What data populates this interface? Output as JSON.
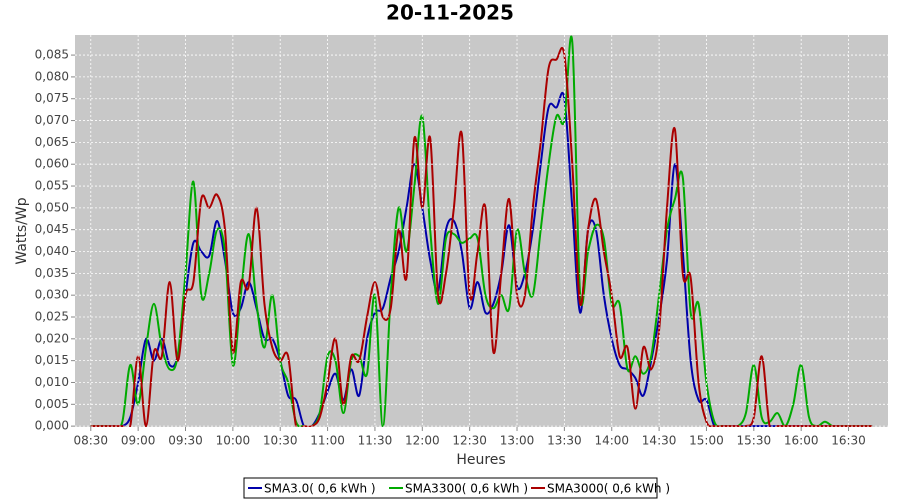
{
  "chart_data": {
    "type": "line",
    "title": "20-11-2025",
    "xlabel": "Heures",
    "ylabel": "Watts/Wp",
    "grid": true,
    "legend": "bottom",
    "xlim": [
      "08:20",
      "16:55"
    ],
    "xticks": [
      "08:30",
      "09:00",
      "09:30",
      "10:00",
      "10:30",
      "11:00",
      "11:30",
      "12:00",
      "12:30",
      "13:00",
      "13:30",
      "14:00",
      "14:30",
      "15:00",
      "15:30",
      "16:00",
      "16:30"
    ],
    "ylim": [
      -0.0002,
      0.0896
    ],
    "yticks": [
      {
        "value": 0,
        "label": "0,000"
      },
      {
        "value": 0.005,
        "label": "0,005"
      },
      {
        "value": 0.01,
        "label": "0,010"
      },
      {
        "value": 0.015,
        "label": "0,015"
      },
      {
        "value": 0.02,
        "label": "0,020"
      },
      {
        "value": 0.025,
        "label": "0,025"
      },
      {
        "value": 0.03,
        "label": "0,030"
      },
      {
        "value": 0.035,
        "label": "0,035"
      },
      {
        "value": 0.04,
        "label": "0,040"
      },
      {
        "value": 0.045,
        "label": "0,045"
      },
      {
        "value": 0.05,
        "label": "0,050"
      },
      {
        "value": 0.055,
        "label": "0,055"
      },
      {
        "value": 0.06,
        "label": "0,060"
      },
      {
        "value": 0.065,
        "label": "0,065"
      },
      {
        "value": 0.07,
        "label": "0,070"
      },
      {
        "value": 0.075,
        "label": "0,075"
      },
      {
        "value": 0.08,
        "label": "0,080"
      },
      {
        "value": 0.085,
        "label": "0,085"
      }
    ],
    "x": [
      "08:30",
      "08:35",
      "08:40",
      "08:45",
      "08:50",
      "08:55",
      "09:00",
      "09:05",
      "09:10",
      "09:15",
      "09:20",
      "09:25",
      "09:30",
      "09:35",
      "09:40",
      "09:45",
      "09:50",
      "09:55",
      "10:00",
      "10:05",
      "10:10",
      "10:15",
      "10:20",
      "10:25",
      "10:30",
      "10:35",
      "10:40",
      "10:45",
      "10:50",
      "10:55",
      "11:00",
      "11:05",
      "11:10",
      "11:15",
      "11:20",
      "11:25",
      "11:30",
      "11:35",
      "11:40",
      "11:45",
      "11:50",
      "11:55",
      "12:00",
      "12:05",
      "12:10",
      "12:15",
      "12:20",
      "12:25",
      "12:30",
      "12:35",
      "12:40",
      "12:45",
      "12:50",
      "12:55",
      "13:00",
      "13:05",
      "13:10",
      "13:15",
      "13:20",
      "13:25",
      "13:30",
      "13:35",
      "13:40",
      "13:45",
      "13:50",
      "13:55",
      "14:00",
      "14:05",
      "14:10",
      "14:15",
      "14:20",
      "14:25",
      "14:30",
      "14:35",
      "14:40",
      "14:45",
      "14:50",
      "14:55",
      "15:00",
      "15:05",
      "15:10",
      "15:15",
      "15:20",
      "15:25",
      "15:30",
      "15:35",
      "15:40",
      "15:45",
      "15:50",
      "15:55",
      "16:00",
      "16:05",
      "16:10",
      "16:15",
      "16:20",
      "16:25",
      "16:30",
      "16:35",
      "16:40",
      "16:45"
    ],
    "series": [
      {
        "name": "SMA3.0( 0,6 kWh )",
        "color": "#0000aa",
        "values": [
          0,
          0,
          0,
          0,
          0,
          0.002,
          0.01,
          0.02,
          0.015,
          0.02,
          0.014,
          0.016,
          0.03,
          0.042,
          0.04,
          0.039,
          0.047,
          0.038,
          0.026,
          0.027,
          0.033,
          0.027,
          0.02,
          0.02,
          0.015,
          0.007,
          0.006,
          0,
          0,
          0.003,
          0.008,
          0.012,
          0.006,
          0.013,
          0.007,
          0.02,
          0.026,
          0.027,
          0.034,
          0.04,
          0.05,
          0.06,
          0.05,
          0.038,
          0.031,
          0.045,
          0.047,
          0.04,
          0.027,
          0.033,
          0.026,
          0.028,
          0.035,
          0.046,
          0.032,
          0.035,
          0.045,
          0.06,
          0.073,
          0.073,
          0.075,
          0.05,
          0.026,
          0.045,
          0.045,
          0.03,
          0.02,
          0.014,
          0.013,
          0.011,
          0.007,
          0.015,
          0.025,
          0.038,
          0.06,
          0.04,
          0.015,
          0.006,
          0.006,
          0,
          0,
          0,
          0,
          0,
          0,
          0,
          0,
          0,
          0,
          0,
          0,
          0,
          0,
          0,
          0,
          0,
          0,
          0,
          0,
          0
        ]
      },
      {
        "name": "SMA3300( 0,6 kWh )",
        "color": "#00aa00",
        "values": [
          0,
          0,
          0,
          0,
          0.001,
          0.014,
          0.005,
          0.018,
          0.028,
          0.018,
          0.013,
          0.016,
          0.035,
          0.056,
          0.03,
          0.035,
          0.045,
          0.04,
          0.014,
          0.03,
          0.044,
          0.028,
          0.018,
          0.03,
          0.015,
          0.01,
          0.001,
          0,
          0,
          0.003,
          0.016,
          0.015,
          0.003,
          0.015,
          0.016,
          0.012,
          0.03,
          0,
          0.03,
          0.05,
          0.04,
          0.055,
          0.071,
          0.045,
          0.028,
          0.043,
          0.044,
          0.042,
          0.043,
          0.043,
          0.03,
          0.027,
          0.03,
          0.027,
          0.045,
          0.035,
          0.03,
          0.045,
          0.06,
          0.071,
          0.07,
          0.088,
          0.03,
          0.04,
          0.046,
          0.043,
          0.028,
          0.028,
          0.013,
          0.016,
          0.012,
          0.016,
          0.03,
          0.045,
          0.052,
          0.057,
          0.026,
          0.028,
          0.01,
          0.001,
          0,
          0,
          0,
          0.003,
          0.014,
          0.002,
          0.001,
          0.003,
          0,
          0.005,
          0.014,
          0.002,
          0,
          0.001,
          0,
          0,
          0,
          0,
          0,
          0
        ]
      },
      {
        "name": "SMA3000( 0,6 kWh )",
        "color": "#aa0000",
        "values": [
          0,
          0,
          0,
          0,
          0,
          0,
          0.016,
          0,
          0.017,
          0.016,
          0.033,
          0.015,
          0.03,
          0.033,
          0.052,
          0.05,
          0.053,
          0.045,
          0.017,
          0.033,
          0.032,
          0.05,
          0.028,
          0.018,
          0.015,
          0.016,
          0,
          0,
          0,
          0.002,
          0.01,
          0.02,
          0.005,
          0.016,
          0.015,
          0.025,
          0.033,
          0.025,
          0.027,
          0.045,
          0.034,
          0.066,
          0.05,
          0.066,
          0.03,
          0.035,
          0.05,
          0.067,
          0.03,
          0.04,
          0.05,
          0.017,
          0.035,
          0.052,
          0.03,
          0.03,
          0.05,
          0.065,
          0.082,
          0.084,
          0.085,
          0.06,
          0.028,
          0.045,
          0.052,
          0.04,
          0.03,
          0.016,
          0.018,
          0.004,
          0.018,
          0.013,
          0.022,
          0.05,
          0.068,
          0.035,
          0.034,
          0.01,
          0.001,
          0,
          0,
          0,
          0,
          0,
          0.002,
          0.016,
          0,
          0,
          0,
          0,
          0,
          0,
          0,
          0,
          0,
          0,
          0,
          0,
          0,
          0
        ]
      }
    ]
  }
}
